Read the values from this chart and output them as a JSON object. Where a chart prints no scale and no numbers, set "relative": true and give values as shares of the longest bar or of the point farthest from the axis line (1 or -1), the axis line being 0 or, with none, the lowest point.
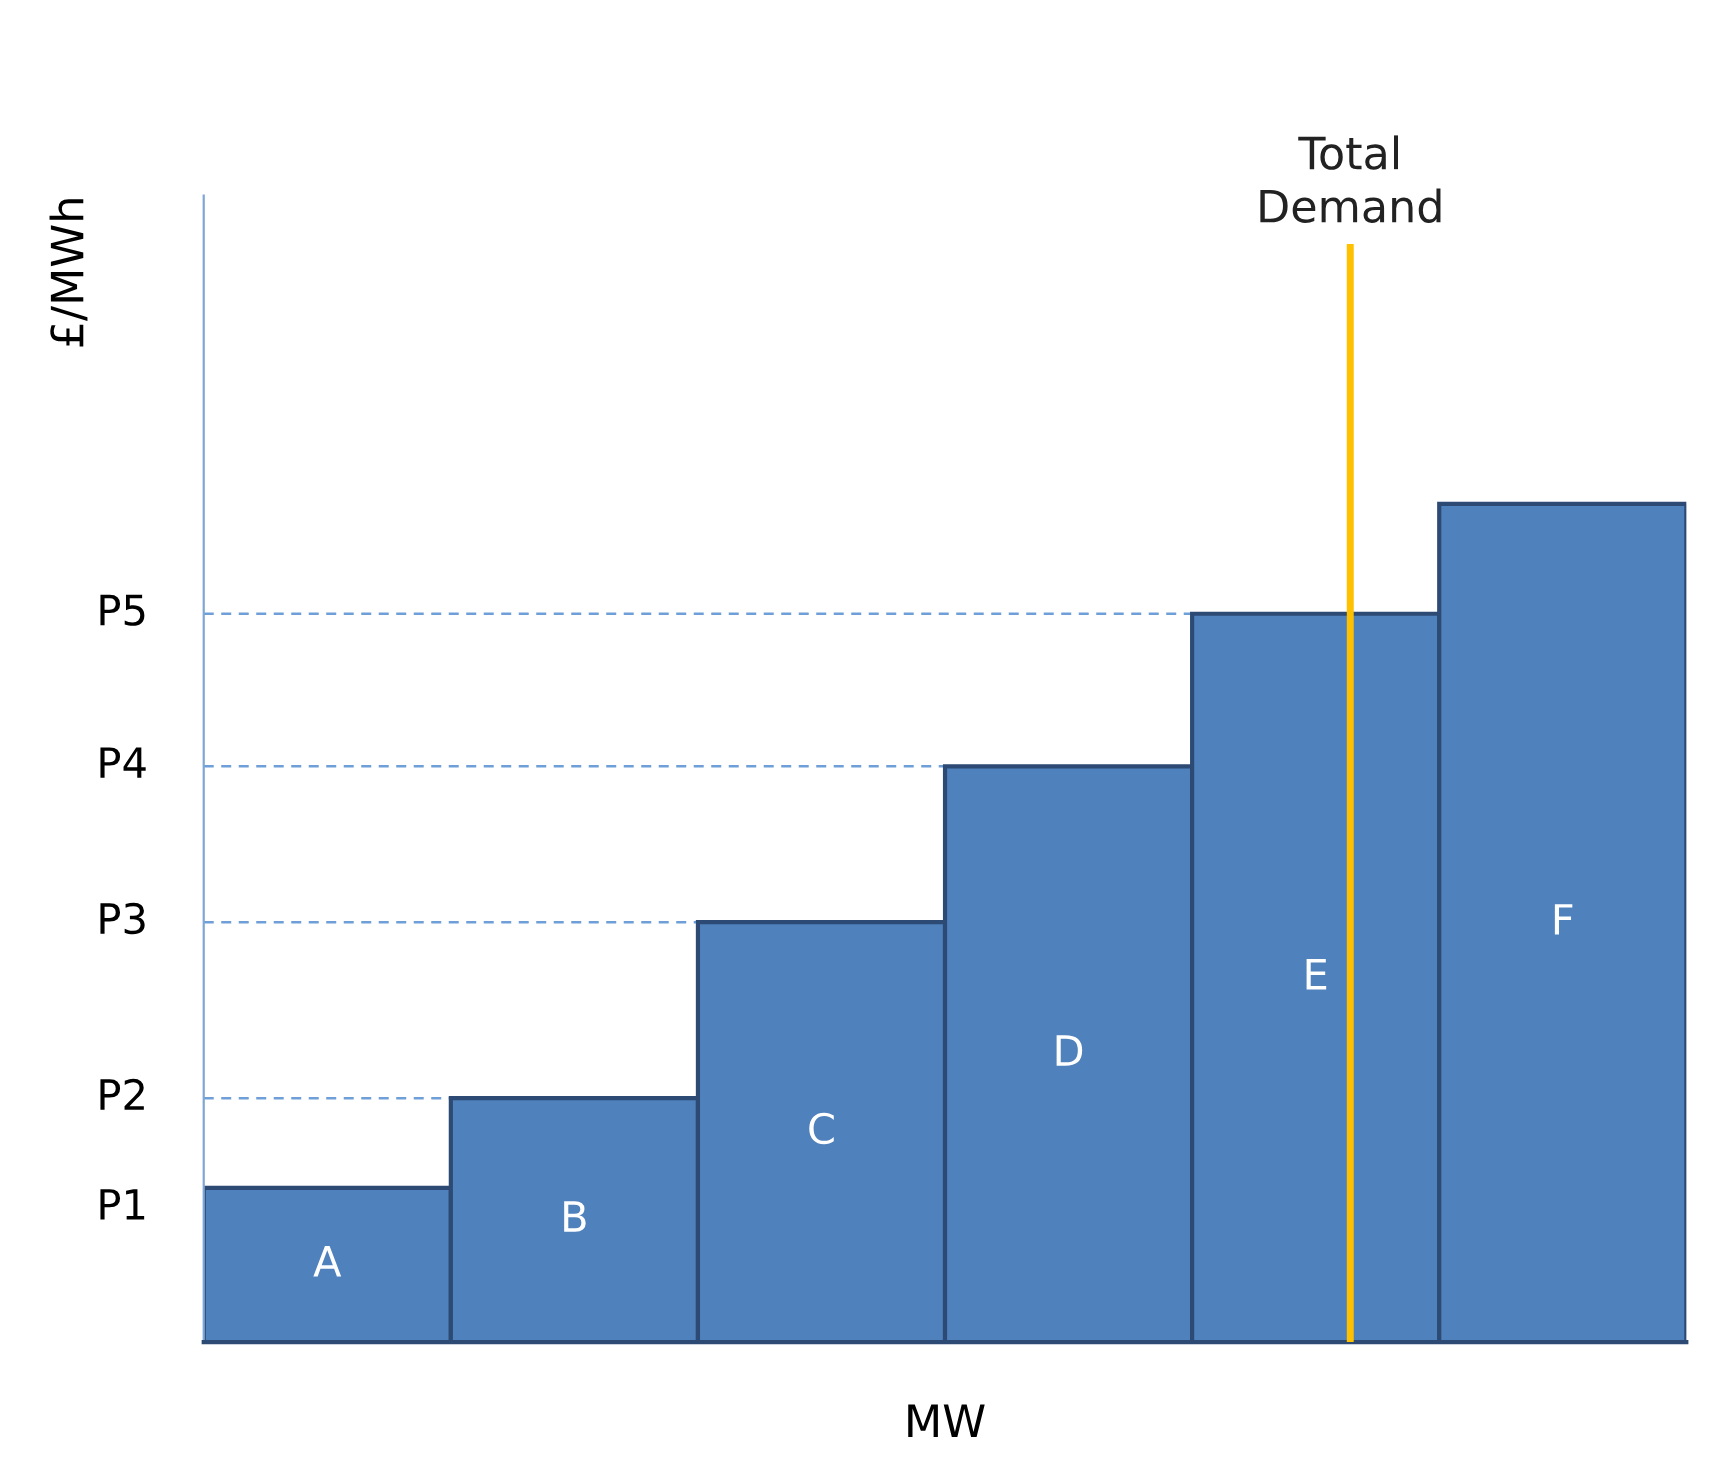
{
  "chart_data": {
    "type": "bar",
    "relative": true,
    "ylabel": "£/MWh",
    "xlabel": "MW",
    "categories": [
      "A",
      "B",
      "C",
      "D",
      "E",
      "F"
    ],
    "values": [
      0.184,
      0.291,
      0.501,
      0.687,
      0.869,
      1.0
    ],
    "color": "#4f81bd",
    "ref_lines": [
      {
        "axis": "y",
        "value": 0.291,
        "label": "P2",
        "line_style": "dashed",
        "color": "#6f9fd8"
      },
      {
        "axis": "y",
        "value": 0.501,
        "label": "P3",
        "line_style": "dashed",
        "color": "#6f9fd8"
      },
      {
        "axis": "y",
        "value": 0.687,
        "label": "P4",
        "line_style": "dashed",
        "color": "#6f9fd8"
      },
      {
        "axis": "y",
        "value": 0.869,
        "label": "P5",
        "line_style": "dashed",
        "color": "#6f9fd8"
      },
      {
        "axis": "x",
        "value": "E",
        "label": "Total\nDemand",
        "color": "#ffc000"
      }
    ],
    "annotations": [
      "P1"
    ],
    "legend": false
  }
}
